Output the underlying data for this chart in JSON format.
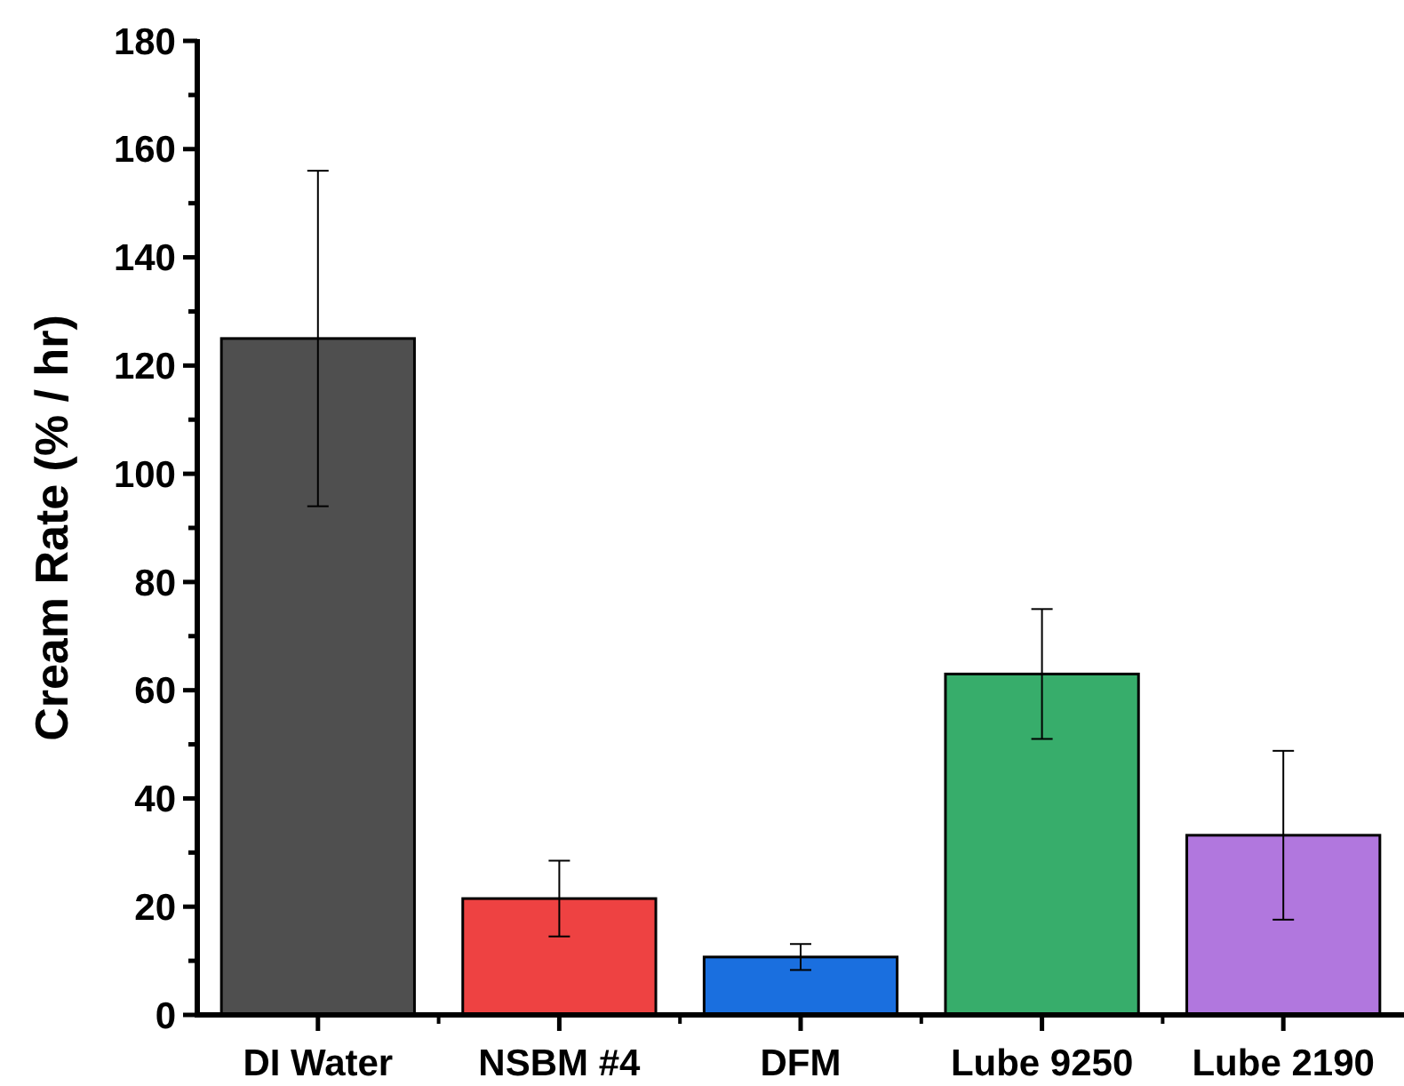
{
  "chart_data": {
    "type": "bar",
    "ylabel": "Cream Rate (% / hr)",
    "categories": [
      "DI Water",
      "NSBM #4",
      "DFM",
      "Lube 9250",
      "Lube 2190"
    ],
    "values": [
      125,
      21.5,
      10.7,
      63,
      33.2
    ],
    "colors": [
      "#4f4f4f",
      "#ee4242",
      "#1a6fdf",
      "#37ad6b",
      "#b177de"
    ],
    "errors": [
      31,
      7,
      2.4,
      12,
      15.6
    ],
    "ylim": [
      0,
      180
    ],
    "yticks": [
      0,
      {
        "value": 10,
        "label": null
      },
      20,
      {
        "value": 30,
        "label": null
      },
      40,
      {
        "value": 50,
        "label": null
      },
      60,
      {
        "value": 70,
        "label": null
      },
      80,
      {
        "value": 90,
        "label": null
      },
      100,
      {
        "value": 110,
        "label": null
      },
      120,
      {
        "value": 130,
        "label": null
      },
      140,
      {
        "value": 150,
        "label": null
      },
      160,
      {
        "value": 170,
        "label": null
      },
      180
    ],
    "grid": false
  }
}
